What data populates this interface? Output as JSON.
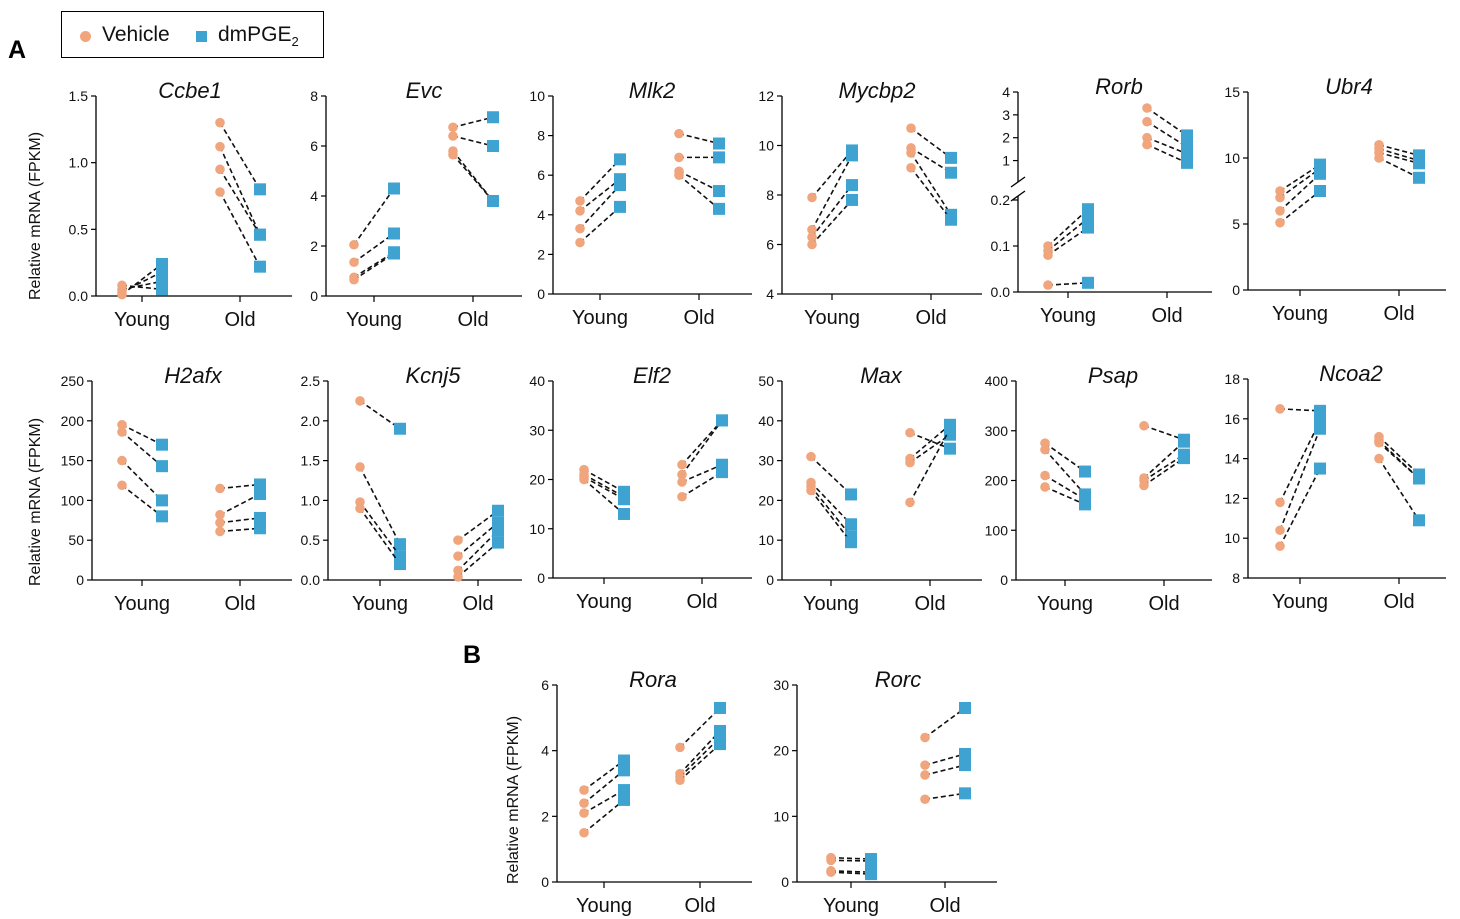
{
  "legend": {
    "vehicle_label": "Vehicle",
    "dmpge2_label": "dmPGE",
    "dmpge2_subscript": "2"
  },
  "panel_letters": [
    "A",
    "B"
  ],
  "ylabel": "Relative mRNA (FPKM)",
  "colors": {
    "vehicle": "#f0a57c",
    "dmpge2": "#3ea3d0",
    "line": "#111111"
  },
  "chart_data": [
    {
      "type": "scatter",
      "title": "Ccbe1",
      "ylim": [
        0,
        1.5
      ],
      "yticks": [
        "0.0",
        "0.5",
        "1.0",
        "1.5"
      ],
      "categories": [
        "Young",
        "Old"
      ],
      "pairs": {
        "Young": [
          [
            0.01,
            0.24
          ],
          [
            0.03,
            0.18
          ],
          [
            0.05,
            0.11
          ],
          [
            0.08,
            0.05
          ]
        ],
        "Old": [
          [
            1.3,
            0.8
          ],
          [
            1.12,
            0.46
          ],
          [
            0.95,
            0.46
          ],
          [
            0.78,
            0.22
          ]
        ]
      }
    },
    {
      "type": "scatter",
      "title": "Evc",
      "ylim": [
        0,
        8
      ],
      "yticks": [
        "0",
        "2",
        "4",
        "6",
        "8"
      ],
      "categories": [
        "Young",
        "Old"
      ],
      "pairs": {
        "Young": [
          [
            2.05,
            4.3
          ],
          [
            1.35,
            2.5
          ],
          [
            0.75,
            1.75
          ],
          [
            0.65,
            1.7
          ]
        ],
        "Old": [
          [
            6.75,
            7.15
          ],
          [
            6.4,
            6.0
          ],
          [
            5.8,
            3.8
          ],
          [
            5.65,
            3.8
          ]
        ]
      }
    },
    {
      "type": "scatter",
      "title": "Mlk2",
      "ylim": [
        0,
        10
      ],
      "yticks": [
        "0",
        "2",
        "4",
        "6",
        "8",
        "10"
      ],
      "categories": [
        "Young",
        "Old"
      ],
      "pairs": {
        "Young": [
          [
            4.7,
            6.8
          ],
          [
            4.2,
            5.8
          ],
          [
            3.3,
            5.5
          ],
          [
            2.6,
            4.4
          ]
        ],
        "Old": [
          [
            8.1,
            7.6
          ],
          [
            6.9,
            6.9
          ],
          [
            6.2,
            5.2
          ],
          [
            6.0,
            4.3
          ]
        ]
      }
    },
    {
      "type": "scatter",
      "title": "Mycbp2",
      "ylim": [
        4,
        12
      ],
      "yticks": [
        "4",
        "6",
        "8",
        "10",
        "12"
      ],
      "categories": [
        "Young",
        "Old"
      ],
      "pairs": {
        "Young": [
          [
            7.9,
            9.8
          ],
          [
            6.6,
            9.6
          ],
          [
            6.3,
            8.4
          ],
          [
            6.0,
            7.8
          ]
        ],
        "Old": [
          [
            10.7,
            9.5
          ],
          [
            9.9,
            8.9
          ],
          [
            9.7,
            7.2
          ],
          [
            9.1,
            7.0
          ]
        ]
      }
    },
    {
      "type": "scatter",
      "title": "Rorb",
      "broken_axis": true,
      "ylim_lower": [
        0,
        0.2
      ],
      "ylim_upper": [
        0.5,
        4
      ],
      "yticks_lower": [
        "0.0",
        "0.1",
        "0.2"
      ],
      "yticks_upper": [
        "1",
        "2",
        "3",
        "4"
      ],
      "categories": [
        "Young",
        "Old"
      ],
      "pairs": {
        "Young": [
          [
            0.1,
            0.18
          ],
          [
            0.09,
            0.16
          ],
          [
            0.08,
            0.14
          ],
          [
            0.015,
            0.02
          ]
        ],
        "Old": [
          [
            3.3,
            2.1
          ],
          [
            2.7,
            1.6
          ],
          [
            2.0,
            1.3
          ],
          [
            1.7,
            0.9
          ]
        ]
      }
    },
    {
      "type": "scatter",
      "title": "Ubr4",
      "ylim": [
        0,
        15
      ],
      "yticks": [
        "0",
        "5",
        "10",
        "15"
      ],
      "categories": [
        "Young",
        "Old"
      ],
      "pairs": {
        "Young": [
          [
            7.5,
            9.5
          ],
          [
            7.0,
            9.2
          ],
          [
            6.0,
            8.8
          ],
          [
            5.1,
            7.5
          ]
        ],
        "Old": [
          [
            11.0,
            10.2
          ],
          [
            10.7,
            9.8
          ],
          [
            10.4,
            9.6
          ],
          [
            10.0,
            8.5
          ]
        ]
      }
    },
    {
      "type": "scatter",
      "title": "H2afx",
      "ylim": [
        0,
        250
      ],
      "yticks": [
        "0",
        "50",
        "100",
        "150",
        "200",
        "250"
      ],
      "categories": [
        "Young",
        "Old"
      ],
      "pairs": {
        "Young": [
          [
            195,
            170
          ],
          [
            186,
            143
          ],
          [
            150,
            100
          ],
          [
            119,
            80
          ]
        ],
        "Old": [
          [
            115,
            120
          ],
          [
            82,
            108
          ],
          [
            72,
            78
          ],
          [
            61,
            65
          ]
        ]
      }
    },
    {
      "type": "scatter",
      "title": "Kcnj5",
      "ylim": [
        0,
        2.5
      ],
      "yticks": [
        "0.0",
        "0.5",
        "1.0",
        "1.5",
        "2.0",
        "2.5"
      ],
      "categories": [
        "Young",
        "Old"
      ],
      "pairs": {
        "Young": [
          [
            2.25,
            1.9
          ],
          [
            1.42,
            0.45
          ],
          [
            0.98,
            0.3
          ],
          [
            0.9,
            0.2
          ]
        ],
        "Old": [
          [
            0.5,
            0.87
          ],
          [
            0.3,
            0.72
          ],
          [
            0.12,
            0.62
          ],
          [
            0.04,
            0.47
          ]
        ]
      }
    },
    {
      "type": "scatter",
      "title": "Elf2",
      "ylim": [
        0,
        40
      ],
      "yticks": [
        "0",
        "10",
        "20",
        "30",
        "40"
      ],
      "categories": [
        "Young",
        "Old"
      ],
      "pairs": {
        "Young": [
          [
            22,
            17.5
          ],
          [
            21,
            16.5
          ],
          [
            20.5,
            16
          ],
          [
            20,
            13
          ]
        ],
        "Old": [
          [
            23,
            32
          ],
          [
            21,
            32
          ],
          [
            19.5,
            23
          ],
          [
            16.5,
            21.5
          ]
        ]
      }
    },
    {
      "type": "scatter",
      "title": "Max",
      "ylim": [
        0,
        50
      ],
      "yticks": [
        "0",
        "10",
        "20",
        "30",
        "40",
        "50"
      ],
      "categories": [
        "Young",
        "Old"
      ],
      "pairs": {
        "Young": [
          [
            31,
            21.5
          ],
          [
            24.5,
            14
          ],
          [
            23.5,
            11
          ],
          [
            22.5,
            9.5
          ]
        ],
        "Old": [
          [
            37,
            33
          ],
          [
            30.5,
            39
          ],
          [
            29.5,
            36.5
          ],
          [
            19.5,
            38
          ]
        ]
      }
    },
    {
      "type": "scatter",
      "title": "Psap",
      "ylim": [
        0,
        400
      ],
      "yticks": [
        "0",
        "100",
        "200",
        "300",
        "400"
      ],
      "categories": [
        "Young",
        "Old"
      ],
      "pairs": {
        "Young": [
          [
            275,
            218
          ],
          [
            262,
            172
          ],
          [
            210,
            162
          ],
          [
            187,
            152
          ]
        ],
        "Old": [
          [
            310,
            282
          ],
          [
            205,
            278
          ],
          [
            200,
            252
          ],
          [
            190,
            245
          ]
        ]
      }
    },
    {
      "type": "scatter",
      "title": "Ncoa2",
      "ylim": [
        8,
        18
      ],
      "yticks": [
        "8",
        "10",
        "12",
        "14",
        "16",
        "18"
      ],
      "categories": [
        "Young",
        "Old"
      ],
      "pairs": {
        "Young": [
          [
            16.5,
            16.4
          ],
          [
            11.8,
            15.9
          ],
          [
            10.4,
            15.5
          ],
          [
            9.6,
            13.5
          ]
        ],
        "Old": [
          [
            15.1,
            13.2
          ],
          [
            14.9,
            13.0
          ],
          [
            14.8,
            13.0
          ],
          [
            14.0,
            10.9
          ]
        ]
      }
    },
    {
      "type": "scatter",
      "title": "Rora",
      "ylim": [
        0,
        6
      ],
      "yticks": [
        "0",
        "2",
        "4",
        "6"
      ],
      "categories": [
        "Young",
        "Old"
      ],
      "pairs": {
        "Young": [
          [
            2.8,
            3.7
          ],
          [
            2.4,
            3.4
          ],
          [
            2.1,
            2.8
          ],
          [
            1.5,
            2.5
          ]
        ],
        "Old": [
          [
            4.1,
            5.3
          ],
          [
            3.3,
            4.6
          ],
          [
            3.2,
            4.4
          ],
          [
            3.1,
            4.2
          ]
        ]
      }
    },
    {
      "type": "scatter",
      "title": "Rorc",
      "ylim": [
        0,
        30
      ],
      "yticks": [
        "0",
        "10",
        "20",
        "30"
      ],
      "categories": [
        "Young",
        "Old"
      ],
      "pairs": {
        "Young": [
          [
            3.7,
            3.5
          ],
          [
            3.3,
            3.2
          ],
          [
            1.7,
            1.5
          ],
          [
            1.5,
            1.2
          ]
        ],
        "Old": [
          [
            22,
            26.5
          ],
          [
            17.8,
            19.5
          ],
          [
            16.3,
            17.8
          ],
          [
            12.6,
            13.5
          ]
        ]
      }
    }
  ]
}
